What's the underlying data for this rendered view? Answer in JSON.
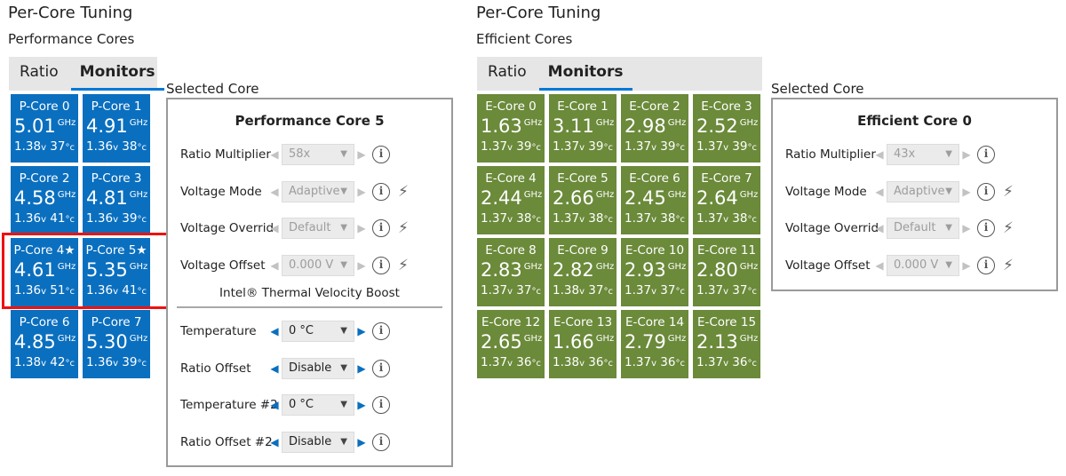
{
  "left": {
    "title": "Per-Core Tuning",
    "subtitle": "Performance Cores",
    "tabs": [
      "Ratio",
      "Monitors"
    ],
    "selected_label": "Selected Core",
    "cores": [
      {
        "name": "P-Core 0",
        "freq": "5.01",
        "volt": "1.38",
        "temp": "37"
      },
      {
        "name": "P-Core 1",
        "freq": "4.91",
        "volt": "1.36",
        "temp": "38"
      },
      {
        "name": "P-Core 2",
        "freq": "4.58",
        "volt": "1.36",
        "temp": "41"
      },
      {
        "name": "P-Core 3",
        "freq": "4.81",
        "volt": "1.36",
        "temp": "39"
      },
      {
        "name": "P-Core 4★",
        "freq": "4.61",
        "volt": "1.36",
        "temp": "51"
      },
      {
        "name": "P-Core 5★",
        "freq": "5.35",
        "volt": "1.36",
        "temp": "41"
      },
      {
        "name": "P-Core 6",
        "freq": "4.85",
        "volt": "1.38",
        "temp": "42"
      },
      {
        "name": "P-Core 7",
        "freq": "5.30",
        "volt": "1.36",
        "temp": "39"
      }
    ],
    "details": {
      "title": "Performance Core 5",
      "rows": [
        {
          "label": "Ratio Multiplier",
          "value": "58x"
        },
        {
          "label": "Voltage Mode",
          "value": "Adaptive"
        },
        {
          "label": "Voltage Overrid",
          "value": "Default"
        },
        {
          "label": "Voltage Offset",
          "value": "0.000 V"
        }
      ],
      "tvb_heading": "Intel® Thermal Velocity Boost",
      "tvb_rows": [
        {
          "label": "Temperature",
          "value": "0 °C"
        },
        {
          "label": "Ratio Offset",
          "value": "Disable"
        },
        {
          "label": "Temperature #2",
          "value": "0 °C"
        },
        {
          "label": "Ratio Offset #2",
          "value": "Disable"
        }
      ]
    }
  },
  "right": {
    "title": "Per-Core Tuning",
    "subtitle": "Efficient Cores",
    "tabs": [
      "Ratio",
      "Monitors"
    ],
    "selected_label": "Selected Core",
    "cores": [
      {
        "name": "E-Core 0",
        "freq": "1.63",
        "volt": "1.37",
        "temp": "39"
      },
      {
        "name": "E-Core 1",
        "freq": "3.11",
        "volt": "1.37",
        "temp": "39"
      },
      {
        "name": "E-Core 2",
        "freq": "2.98",
        "volt": "1.37",
        "temp": "39"
      },
      {
        "name": "E-Core 3",
        "freq": "2.52",
        "volt": "1.37",
        "temp": "39"
      },
      {
        "name": "E-Core 4",
        "freq": "2.44",
        "volt": "1.37",
        "temp": "38"
      },
      {
        "name": "E-Core 5",
        "freq": "2.66",
        "volt": "1.37",
        "temp": "38"
      },
      {
        "name": "E-Core 6",
        "freq": "2.45",
        "volt": "1.37",
        "temp": "38"
      },
      {
        "name": "E-Core 7",
        "freq": "2.64",
        "volt": "1.37",
        "temp": "38"
      },
      {
        "name": "E-Core 8",
        "freq": "2.83",
        "volt": "1.37",
        "temp": "37"
      },
      {
        "name": "E-Core 9",
        "freq": "2.82",
        "volt": "1.38",
        "temp": "37"
      },
      {
        "name": "E-Core 10",
        "freq": "2.93",
        "volt": "1.37",
        "temp": "37"
      },
      {
        "name": "E-Core 11",
        "freq": "2.80",
        "volt": "1.37",
        "temp": "37"
      },
      {
        "name": "E-Core 12",
        "freq": "2.65",
        "volt": "1.37",
        "temp": "36"
      },
      {
        "name": "E-Core 13",
        "freq": "1.66",
        "volt": "1.38",
        "temp": "36"
      },
      {
        "name": "E-Core 14",
        "freq": "2.79",
        "volt": "1.37",
        "temp": "36"
      },
      {
        "name": "E-Core 15",
        "freq": "2.13",
        "volt": "1.37",
        "temp": "36"
      }
    ],
    "details": {
      "title": "Efficient Core 0",
      "rows": [
        {
          "label": "Ratio Multiplier",
          "value": "43x"
        },
        {
          "label": "Voltage Mode",
          "value": "Adaptive"
        },
        {
          "label": "Voltage Overrid",
          "value": "Default"
        },
        {
          "label": "Voltage Offset",
          "value": "0.000 V"
        }
      ]
    }
  },
  "units": {
    "freq": "GHz",
    "volt": "v",
    "temp": "°c"
  },
  "colors": {
    "p_core": "#0a6fbf",
    "e_core": "#6b8a3a",
    "accent": "#0078d7",
    "highlight": "#ee1111"
  }
}
